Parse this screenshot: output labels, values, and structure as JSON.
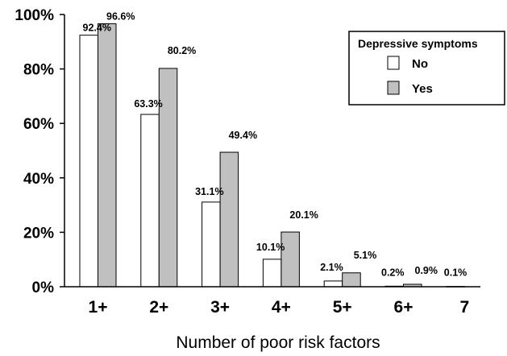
{
  "chart_data": {
    "type": "bar",
    "categories": [
      "1+",
      "2+",
      "3+",
      "4+",
      "5+",
      "6+",
      "7"
    ],
    "series": [
      {
        "name": "No",
        "color": "#ffffff",
        "values": [
          92.4,
          63.3,
          31.1,
          10.1,
          2.1,
          0.2,
          0.1
        ],
        "labels": [
          "92.4%",
          "63.3%",
          "31.1%",
          "10.1%",
          "2.1%",
          "0.2%",
          "0.1%"
        ]
      },
      {
        "name": "Yes",
        "color": "#c0c0c0",
        "values": [
          96.6,
          80.2,
          49.4,
          20.1,
          5.1,
          0.9,
          null
        ],
        "labels": [
          "96.6%",
          "80.2%",
          "49.4%",
          "20.1%",
          "5.1%",
          "0.9%",
          ""
        ]
      }
    ],
    "ylim": [
      0,
      100
    ],
    "yticks": [
      0,
      20,
      40,
      60,
      80,
      100
    ],
    "ytick_labels": [
      "0%",
      "20%",
      "40%",
      "60%",
      "80%",
      "100%"
    ],
    "xlabel": "Number of poor risk factors",
    "ylabel": "",
    "grid": false,
    "legend": {
      "title": "Depressive symptoms",
      "position": "top-right"
    }
  }
}
